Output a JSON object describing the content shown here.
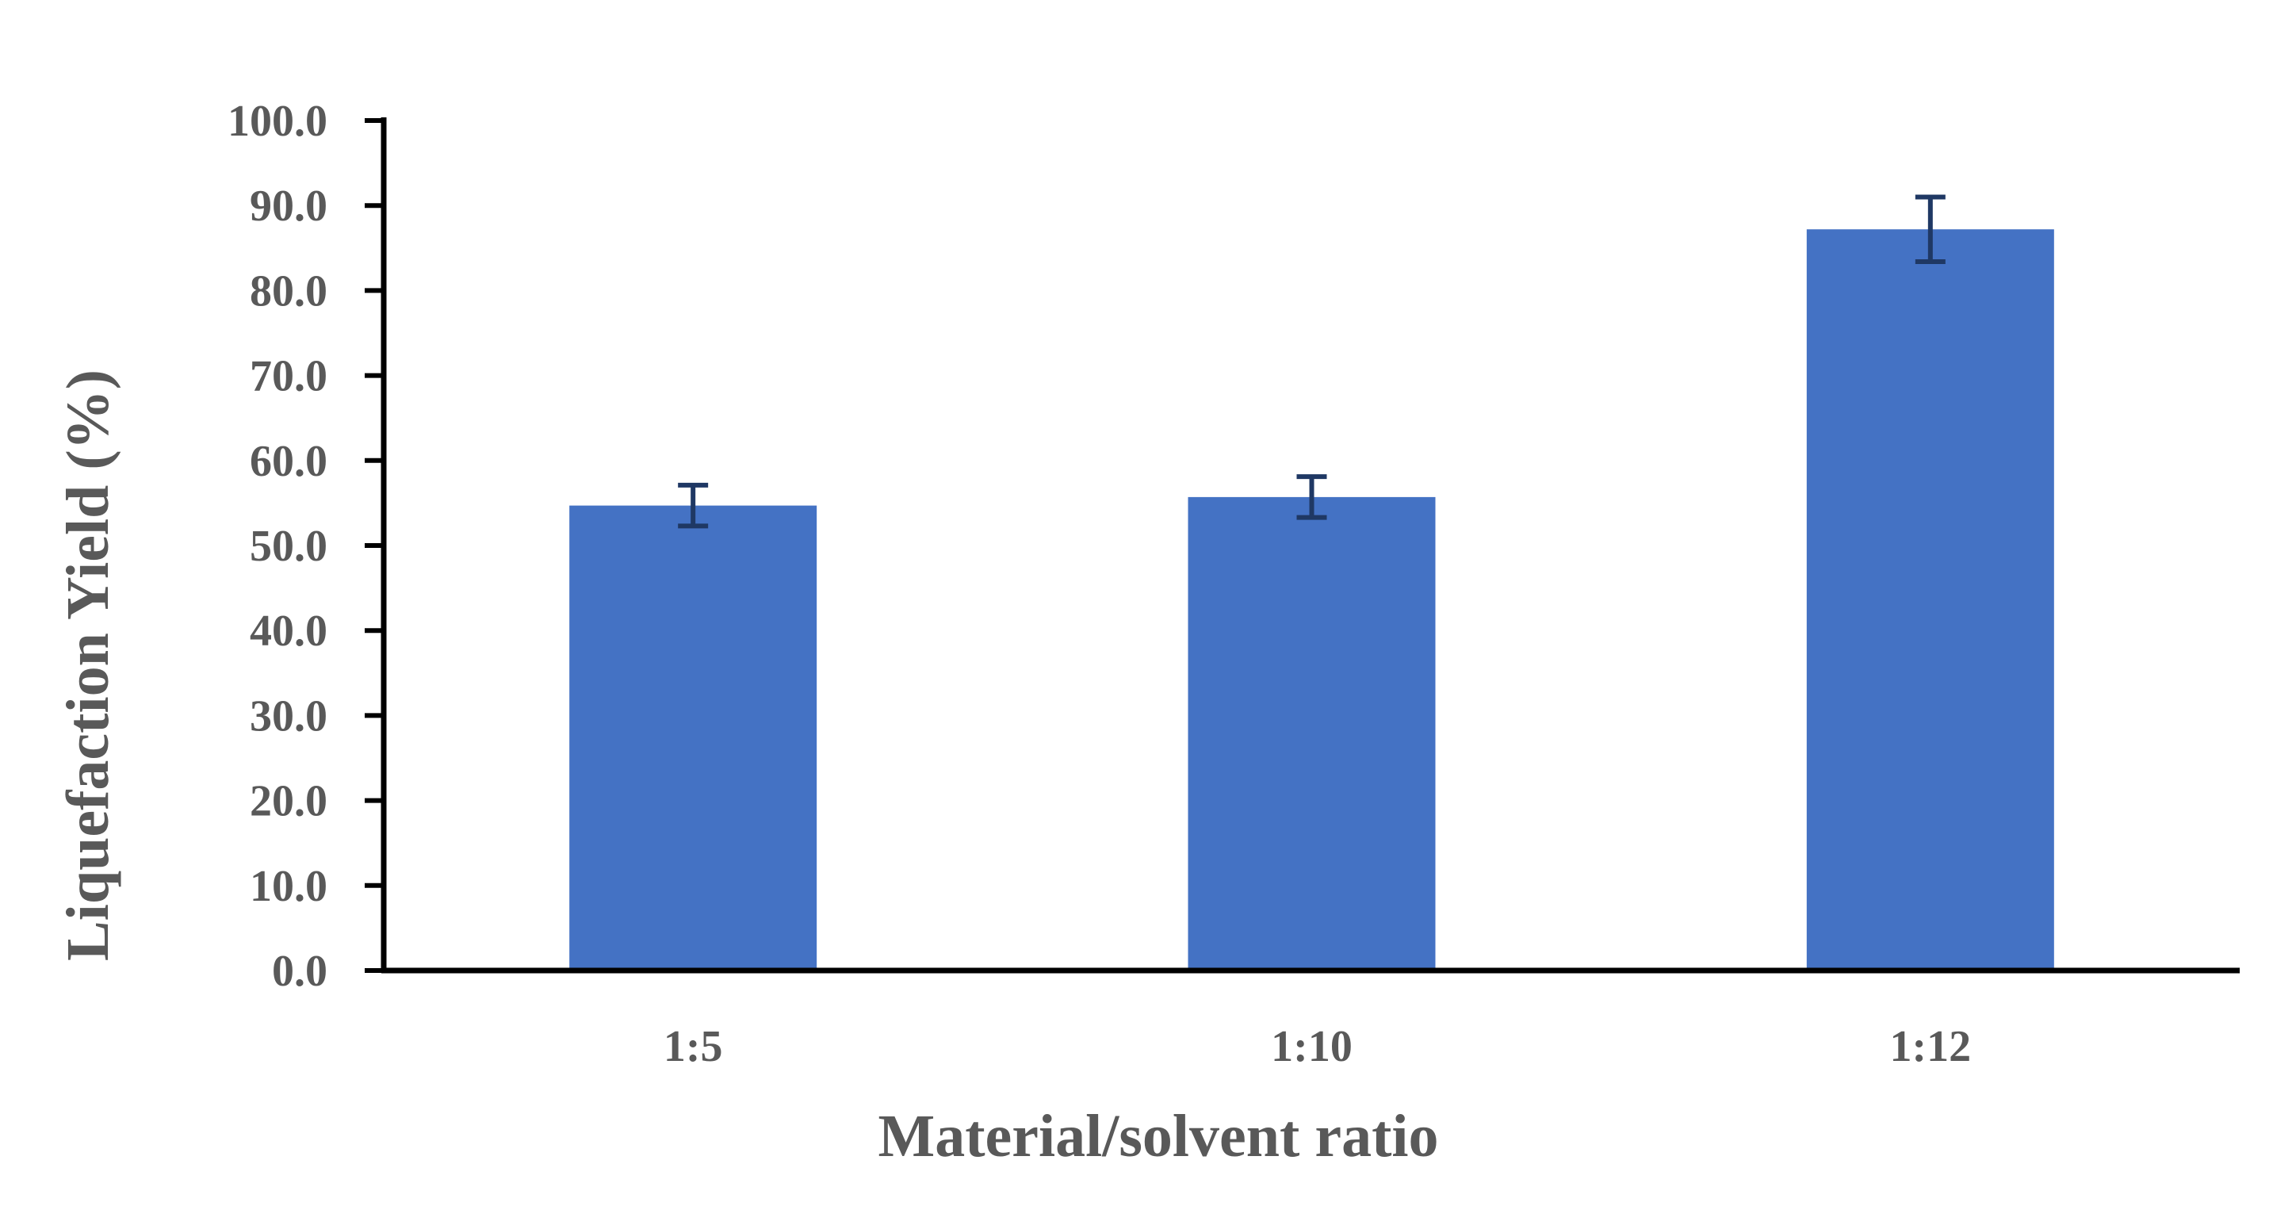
{
  "chart_data": {
    "type": "bar",
    "title": "",
    "xlabel": "Material/solvent ratio",
    "ylabel": "Liquefaction Yield (%)",
    "categories": [
      "1:5",
      "1:10",
      "1:12"
    ],
    "values": [
      54.7,
      55.7,
      87.2
    ],
    "error": [
      2.4,
      2.4,
      3.8
    ],
    "ylim": [
      0,
      100
    ],
    "yticks": [
      "0.0",
      "10.0",
      "20.0",
      "30.0",
      "40.0",
      "50.0",
      "60.0",
      "70.0",
      "80.0",
      "90.0",
      "100.0"
    ],
    "grid": false,
    "legend": "none",
    "colors": {
      "bar": "#4472C4",
      "error_bar": "#1F3864",
      "axis": "#000000",
      "text": "#595959"
    }
  }
}
